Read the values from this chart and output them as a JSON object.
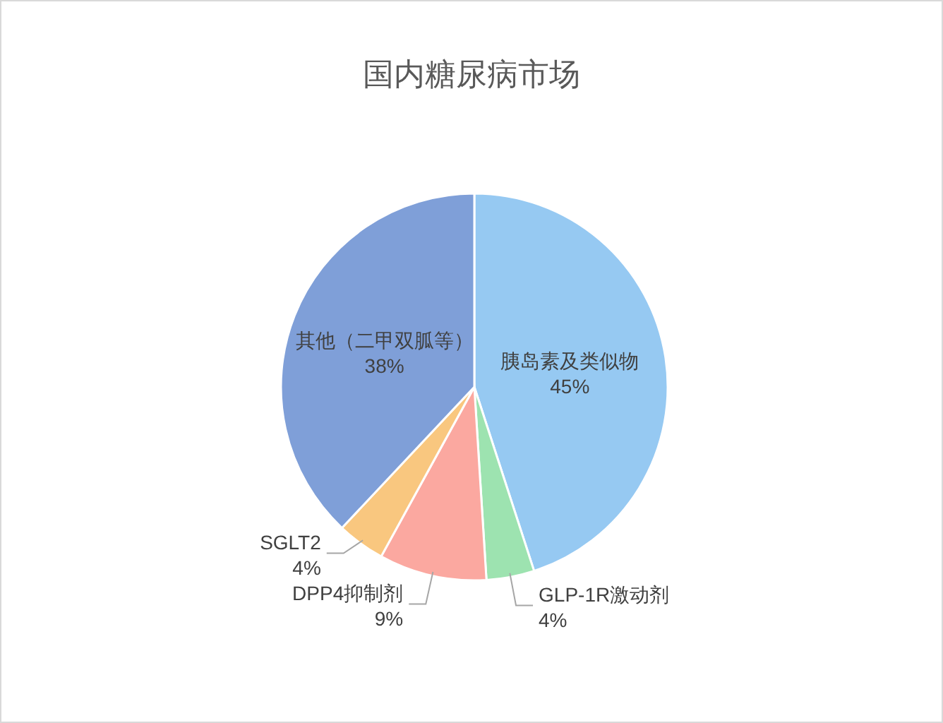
{
  "chart_data": {
    "type": "pie",
    "title": "国内糖尿病市场",
    "categories": [
      "胰岛素及类似物",
      "GLP-1R激动剂",
      "DPP4抑制剂",
      "SGLT2",
      "其他（二甲双胍等）"
    ],
    "values": [
      45,
      4,
      9,
      4,
      38
    ],
    "colors": [
      "#96c9f2",
      "#9de3b0",
      "#fba8a0",
      "#f9c77f",
      "#7f9fd8"
    ],
    "value_labels": [
      "45%",
      "4%",
      "9%",
      "4%",
      "38%"
    ],
    "legend": false
  }
}
